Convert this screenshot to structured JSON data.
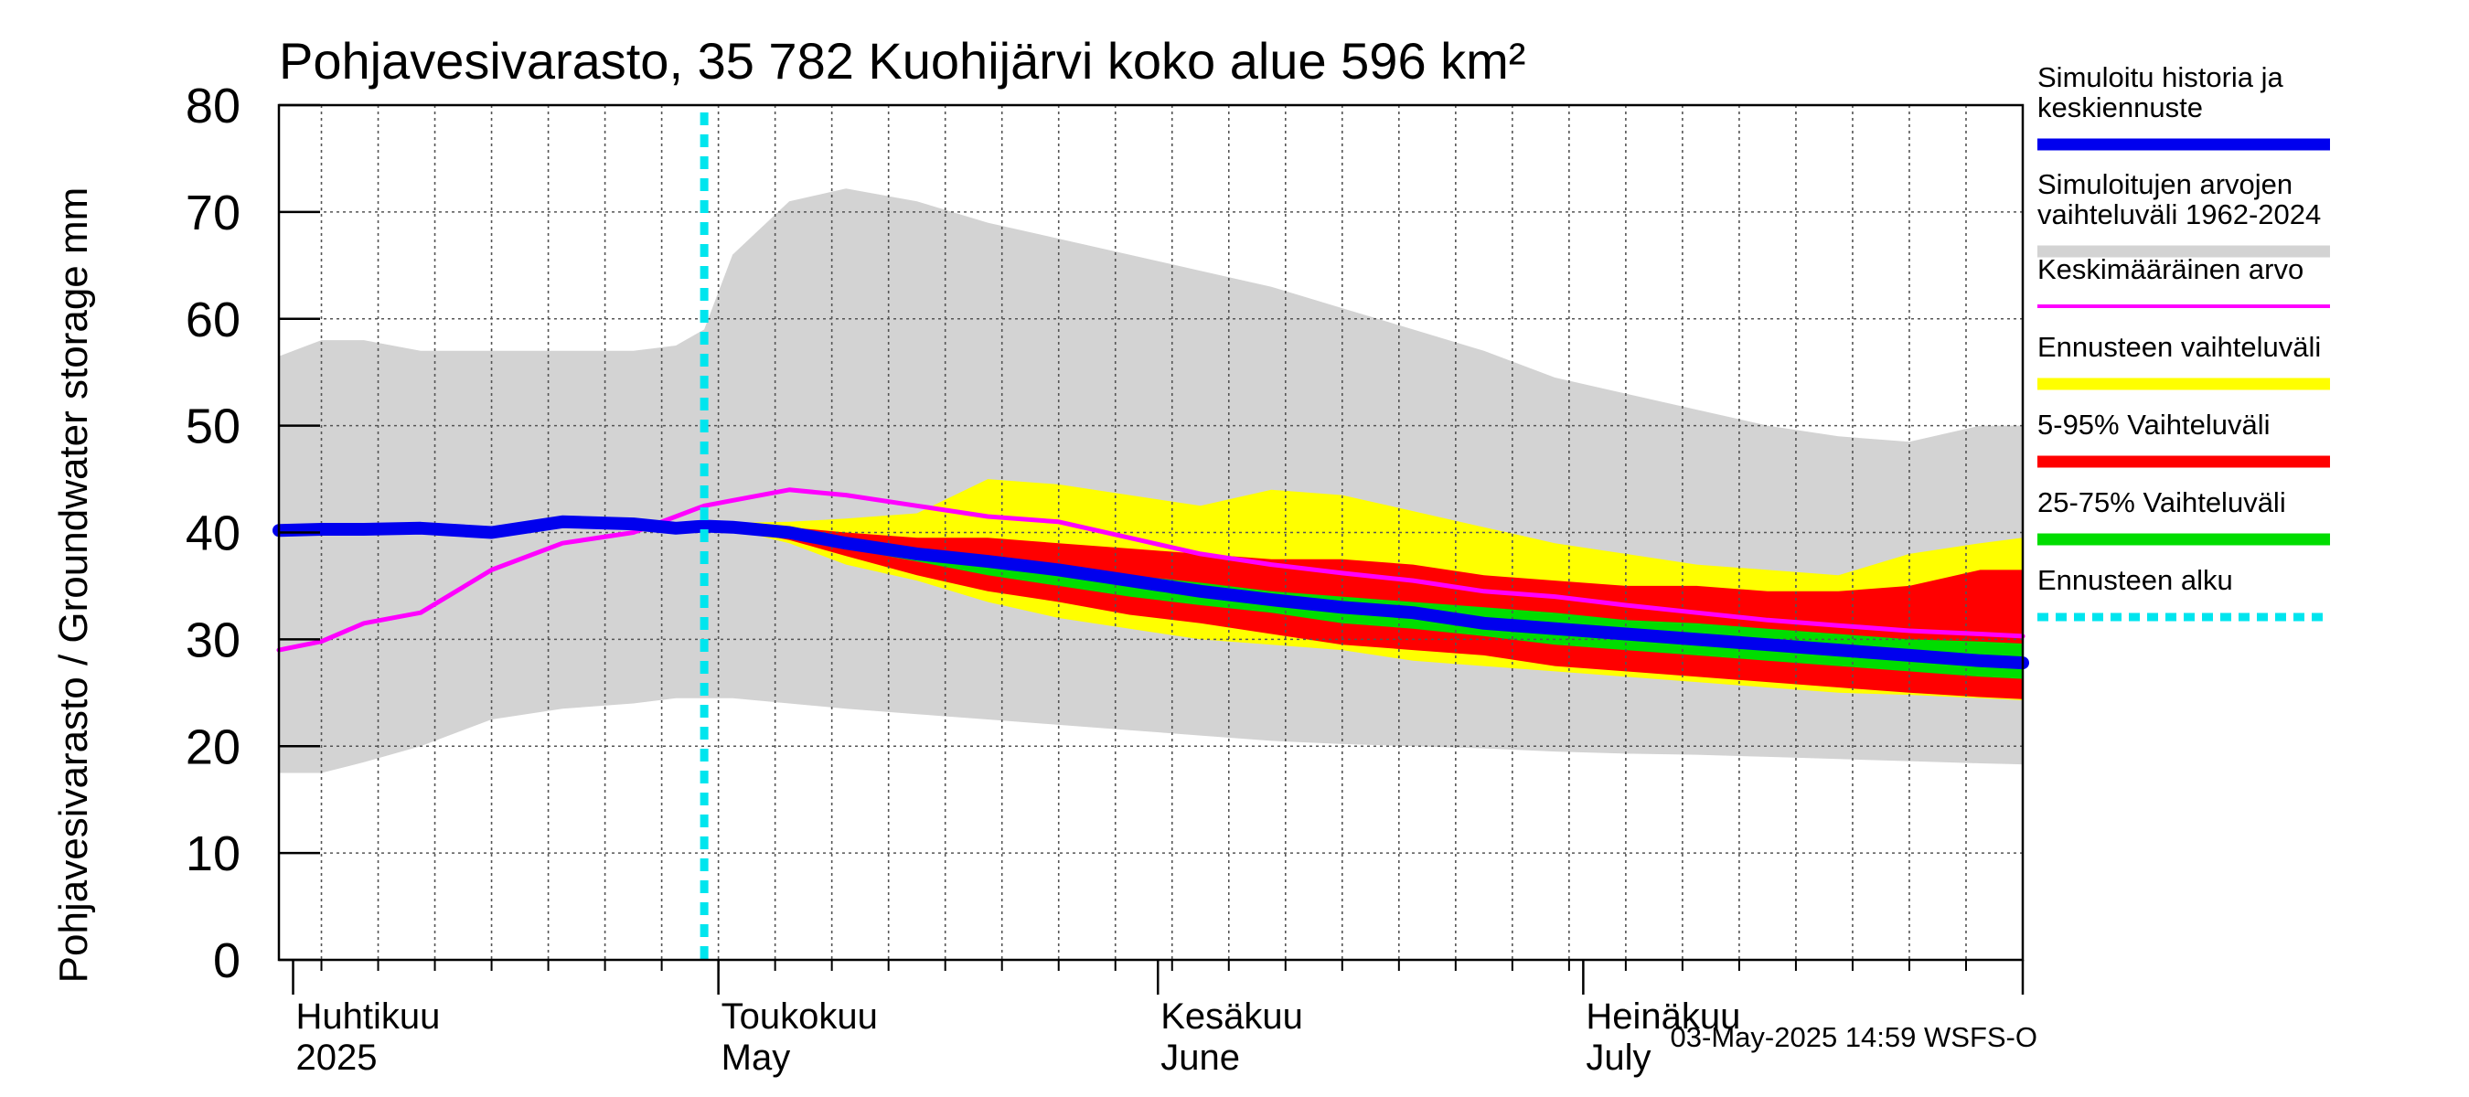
{
  "chart_data": {
    "type": "area",
    "title": "Pohjavesivarasto, 35 782 Kuohijärvi koko alue 596 km²",
    "ylabel": "Pohjavesivarasto / Groundwater storage   mm",
    "ylim": [
      0,
      80
    ],
    "yticks": [
      0,
      10,
      20,
      30,
      40,
      50,
      60,
      70,
      80
    ],
    "x_unit": "day of year 2025",
    "xlim": [
      90,
      213
    ],
    "month_labels": [
      {
        "day": 91,
        "fi": "Huhtikuu",
        "en": "2025"
      },
      {
        "day": 121,
        "fi": "Toukokuu",
        "en": "May"
      },
      {
        "day": 152,
        "fi": "Kesäkuu",
        "en": "June"
      },
      {
        "day": 182,
        "fi": "Heinäkuu",
        "en": "July"
      }
    ],
    "month_boundaries": [
      91,
      121,
      152,
      182,
      213
    ],
    "forecast_start_day": 120,
    "x": [
      90,
      93,
      96,
      100,
      105,
      110,
      115,
      118,
      120,
      122,
      126,
      130,
      135,
      140,
      145,
      150,
      155,
      160,
      165,
      170,
      175,
      180,
      185,
      190,
      195,
      200,
      205,
      210,
      213
    ],
    "series": [
      {
        "name": "Simuloitujen arvojen vaihteluväli 1962-2024",
        "kind": "band",
        "color": "#d3d3d3",
        "low": [
          17.5,
          17.5,
          18.5,
          20,
          22.5,
          23.5,
          24,
          24.5,
          24.5,
          24.5,
          24,
          23.5,
          23,
          22.5,
          22,
          21.5,
          21,
          20.5,
          20.2,
          20,
          19.8,
          19.5,
          19.3,
          19.2,
          19,
          18.8,
          18.6,
          18.4,
          18.3
        ],
        "high": [
          56.5,
          58,
          58,
          57,
          57,
          57,
          57,
          57.5,
          59,
          66,
          71,
          72.2,
          71,
          69,
          67.5,
          66,
          64.5,
          63,
          61,
          59,
          57,
          54.5,
          53,
          51.5,
          50,
          49,
          48.5,
          50,
          50
        ]
      },
      {
        "name": "Ennusteen vaihteluväli",
        "kind": "band",
        "color": "#ffff00",
        "low": [
          null,
          null,
          null,
          null,
          null,
          null,
          null,
          null,
          40.5,
          40.3,
          39,
          37,
          35.5,
          33.5,
          32,
          31,
          30,
          29.5,
          29,
          28,
          27.5,
          27,
          26.5,
          26,
          25.5,
          25,
          24.8,
          24.5,
          24.3
        ],
        "high": [
          null,
          null,
          null,
          null,
          null,
          null,
          null,
          null,
          40.8,
          40.9,
          41,
          41.3,
          41.8,
          45,
          44.5,
          43.5,
          42.5,
          44,
          43.5,
          42,
          40.5,
          39,
          38,
          37,
          36.5,
          36,
          38,
          39,
          39.5
        ]
      },
      {
        "name": "5-95% Vaihteluväli",
        "kind": "band",
        "color": "#ff0000",
        "low": [
          null,
          null,
          null,
          null,
          null,
          null,
          null,
          null,
          40.5,
          40.3,
          39.3,
          37.8,
          36,
          34.5,
          33.5,
          32.3,
          31.5,
          30.5,
          29.5,
          29,
          28.5,
          27.5,
          27,
          26.5,
          26,
          25.5,
          25,
          24.6,
          24.4
        ],
        "high": [
          null,
          null,
          null,
          null,
          null,
          null,
          null,
          null,
          40.8,
          40.8,
          40.5,
          40,
          39.5,
          39.5,
          39,
          38.5,
          38,
          37.5,
          37.5,
          37,
          36,
          35.5,
          35,
          35,
          34.5,
          34.5,
          35,
          36.5,
          36.5
        ]
      },
      {
        "name": "25-75% Vaihteluväli",
        "kind": "band",
        "color": "#00dd00",
        "low": [
          null,
          null,
          null,
          null,
          null,
          null,
          null,
          null,
          40.5,
          40.3,
          39.6,
          38.5,
          37.3,
          36,
          35,
          34,
          33.2,
          32.5,
          31.5,
          31,
          30.3,
          29.5,
          29,
          28.5,
          28,
          27.5,
          27,
          26.5,
          26.3
        ],
        "high": [
          null,
          null,
          null,
          null,
          null,
          null,
          null,
          null,
          40.8,
          40.7,
          40.3,
          39.5,
          38.5,
          37.5,
          36.8,
          36,
          35.3,
          34.5,
          34,
          33.5,
          33,
          32.5,
          31.8,
          31.5,
          31,
          30.5,
          30,
          29.8,
          29.6
        ]
      },
      {
        "name": "Keskimääräinen arvo",
        "kind": "line",
        "color": "#ff00ff",
        "width": 5,
        "values": [
          29,
          29.8,
          31.5,
          32.5,
          36.5,
          39,
          40,
          41.5,
          42.5,
          43,
          44,
          43.5,
          42.5,
          41.5,
          41,
          39.5,
          38,
          37,
          36.2,
          35.5,
          34.5,
          34,
          33.2,
          32.5,
          31.8,
          31.3,
          30.8,
          30.5,
          30.3
        ]
      },
      {
        "name": "Simuloitu historia ja keskiennuste",
        "kind": "line",
        "color": "#0000ee",
        "width": 14,
        "values": [
          40.2,
          40.3,
          40.3,
          40.4,
          40,
          41,
          40.8,
          40.4,
          40.6,
          40.5,
          40,
          39,
          38,
          37.3,
          36.5,
          35.5,
          34.5,
          33.7,
          33,
          32.5,
          31.5,
          31,
          30.5,
          30,
          29.5,
          29,
          28.5,
          28,
          27.8
        ]
      }
    ],
    "legend": [
      {
        "text": "Simuloitu historia ja\nkeskiennuste",
        "color": "#0000ee",
        "style": "solid"
      },
      {
        "text": "Simuloitujen arvojen\nvaihteluväli 1962-2024",
        "color": "#d3d3d3",
        "style": "solid"
      },
      {
        "text": "Keskimääräinen arvo",
        "color": "#ff00ff",
        "style": "thin"
      },
      {
        "text": "Ennusteen vaihteluväli",
        "color": "#ffff00",
        "style": "solid"
      },
      {
        "text": "5-95% Vaihteluväli",
        "color": "#ff0000",
        "style": "solid"
      },
      {
        "text": "25-75% Vaihteluväli",
        "color": "#00dd00",
        "style": "solid"
      },
      {
        "text": "Ennusteen alku",
        "color": "#00e5ee",
        "style": "dotted"
      }
    ],
    "forecast_line_color": "#00e5ee",
    "legend_placement": "right"
  },
  "footer": {
    "timestamp": "03-May-2025 14:59 WSFS-O"
  }
}
